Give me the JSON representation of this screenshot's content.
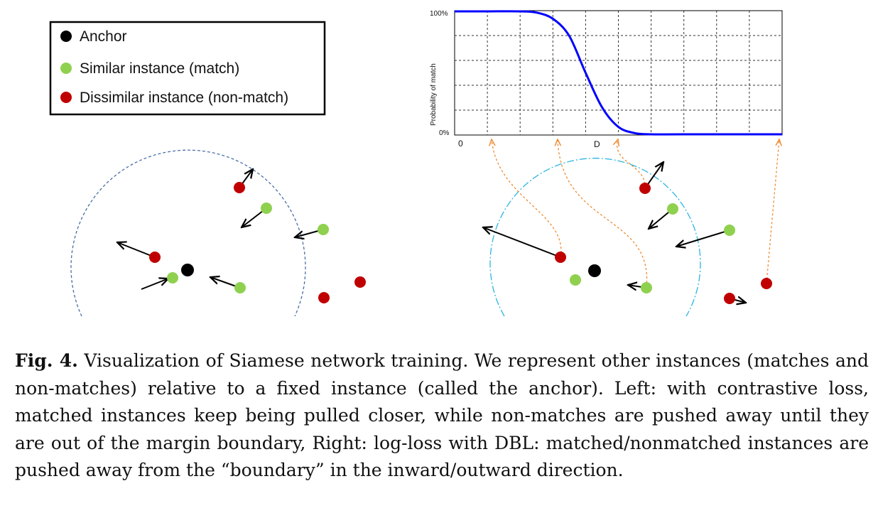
{
  "legend": {
    "items": [
      {
        "label": "Anchor",
        "color": "#000000"
      },
      {
        "label": "Similar instance (match)",
        "color": "#8fd14f"
      },
      {
        "label": "Dissimilar instance (non-match)",
        "color": "#c00000"
      }
    ]
  },
  "chart_data": {
    "type": "line",
    "title": "",
    "xlabel": "",
    "ylabel": "Probability of match",
    "ytick_labels": [
      "100%",
      "0%"
    ],
    "xtick_labels": [
      "0",
      "D"
    ],
    "ylim": [
      0,
      100
    ],
    "grid": true,
    "series": [
      {
        "color": "#0000ff",
        "x": [
          0,
          1,
          2,
          2.5,
          3,
          3.5,
          4,
          4.5,
          5,
          5.5,
          6,
          7,
          10
        ],
        "y": [
          100,
          100,
          100,
          99,
          94,
          80,
          50,
          22,
          6,
          1,
          0,
          0,
          0
        ]
      }
    ]
  },
  "caption": {
    "label": "Fig. 4.",
    "text": "Visualization of Siamese network training. We represent other instances (matches and non-matches) relative to a fixed instance (called the anchor). Left: with contrastive loss, matched instances keep being pulled closer, while non-matches are pushed away until they are out of the margin boundary, Right: log-loss with DBL: matched/nonmatched instances are pushed away from the “boundary” in the inward/outward direction."
  },
  "colors": {
    "match": "#8fd14f",
    "nonmatch": "#c00000",
    "anchor": "#000000",
    "curve": "#0000ff",
    "left_boundary": "#4a6fa5",
    "right_boundary": "#2cb5e0",
    "connector": "#f08a30"
  }
}
